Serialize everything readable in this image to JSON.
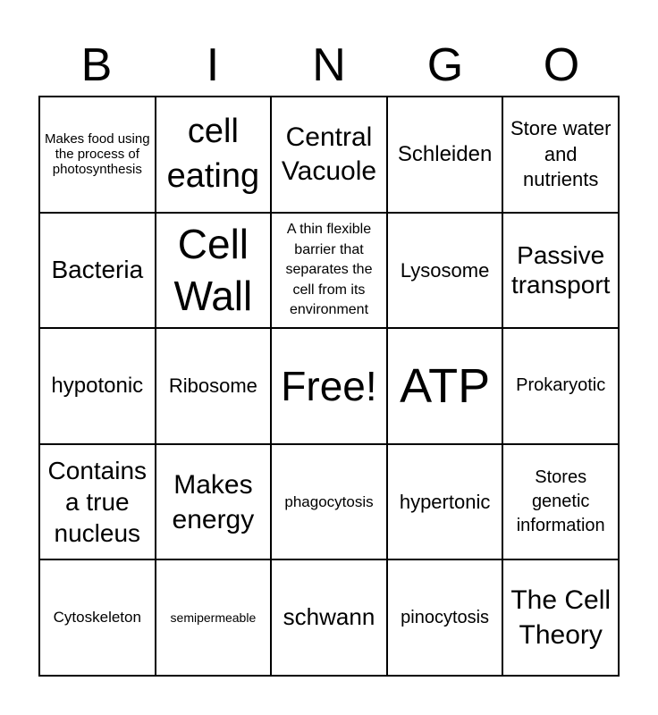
{
  "header": [
    "B",
    "I",
    "N",
    "G",
    "O"
  ],
  "cells": [
    "Makes food using the process of photosynthesis",
    "cell eating",
    "Central Vacuole",
    "Schleiden",
    "Store water and nutrients",
    "Bacteria",
    "Cell Wall",
    "A thin flexible barrier that separates the cell from its environment",
    "Lysosome",
    "Passive transport",
    "hypotonic",
    "Ribosome",
    "Free!",
    "ATP",
    "Prokaryotic",
    "Contains a true nucleus",
    "Makes energy",
    "phagocytosis",
    "hypertonic",
    "Stores genetic information",
    "Cytoskeleton",
    "semipermeable",
    "schwann",
    "pinocytosis",
    "The Cell Theory"
  ]
}
